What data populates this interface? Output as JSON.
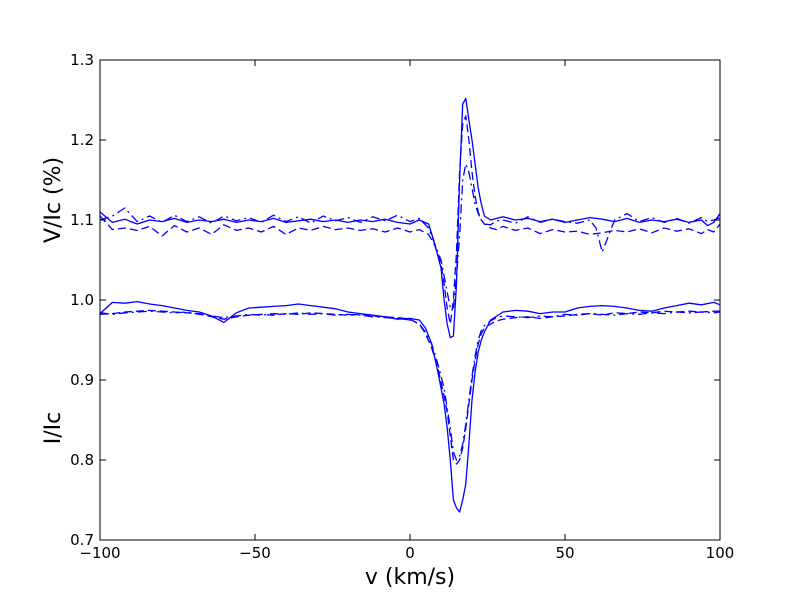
{
  "chart_data": {
    "type": "line",
    "xlabel": "v (km/s)",
    "ylabel_upper": "V/Ic (%)",
    "ylabel_lower": "I/Ic",
    "xlim": [
      -100,
      100
    ],
    "ylim": [
      0.7,
      1.3
    ],
    "xticks": [
      -100,
      -50,
      0,
      50,
      100
    ],
    "xtick_labels": [
      "−100",
      "−50",
      "0",
      "50",
      "100"
    ],
    "yticks": [
      0.7,
      0.8,
      0.9,
      1.0,
      1.1,
      1.2,
      1.3
    ],
    "ytick_labels": [
      "0.7",
      "0.8",
      "0.9",
      "1.0",
      "1.1",
      "1.2",
      "1.3"
    ],
    "grid": false,
    "line_color": "#0000ff",
    "series": [
      {
        "style": "solid",
        "group": "stokes-v",
        "x": [
          -100,
          -96,
          -92,
          -88,
          -84,
          -80,
          -76,
          -72,
          -68,
          -64,
          -60,
          -56,
          -52,
          -48,
          -44,
          -40,
          -36,
          -32,
          -28,
          -24,
          -20,
          -16,
          -12,
          -8,
          -4,
          0,
          3,
          6,
          8,
          10,
          11,
          12,
          13,
          14,
          15,
          16,
          17,
          18,
          19,
          20,
          21,
          22,
          23,
          24,
          26,
          28,
          30,
          34,
          38,
          42,
          46,
          50,
          54,
          58,
          62,
          66,
          70,
          74,
          78,
          82,
          86,
          90,
          94,
          96,
          98,
          100
        ],
        "y": [
          1.11,
          1.097,
          1.101,
          1.095,
          1.1,
          1.098,
          1.102,
          1.097,
          1.1,
          1.098,
          1.101,
          1.097,
          1.1,
          1.098,
          1.102,
          1.097,
          1.099,
          1.101,
          1.098,
          1.1,
          1.097,
          1.1,
          1.098,
          1.101,
          1.097,
          1.095,
          1.1,
          1.095,
          1.07,
          1.04,
          1.0,
          0.97,
          0.953,
          0.955,
          1.02,
          1.15,
          1.245,
          1.252,
          1.225,
          1.2,
          1.17,
          1.14,
          1.12,
          1.105,
          1.1,
          1.102,
          1.104,
          1.1,
          1.102,
          1.098,
          1.101,
          1.097,
          1.1,
          1.103,
          1.101,
          1.098,
          1.102,
          1.097,
          1.1,
          1.098,
          1.101,
          1.097,
          1.1,
          1.093,
          1.097,
          1.108
        ]
      },
      {
        "style": "dashed",
        "group": "stokes-v",
        "x": [
          -100,
          -96,
          -92,
          -88,
          -84,
          -80,
          -76,
          -72,
          -68,
          -64,
          -60,
          -56,
          -52,
          -48,
          -44,
          -40,
          -36,
          -32,
          -28,
          -24,
          -20,
          -16,
          -12,
          -8,
          -4,
          0,
          3,
          6,
          8,
          10,
          11,
          12,
          13,
          14,
          15,
          16,
          17,
          18,
          19,
          20,
          21,
          22,
          23,
          24,
          26,
          28,
          30,
          34,
          38,
          42,
          46,
          50,
          54,
          58,
          62,
          66,
          70,
          74,
          78,
          82,
          86,
          90,
          94,
          96,
          98,
          100
        ],
        "y": [
          1.105,
          1.088,
          1.09,
          1.087,
          1.092,
          1.08,
          1.093,
          1.085,
          1.09,
          1.082,
          1.094,
          1.087,
          1.09,
          1.085,
          1.092,
          1.082,
          1.09,
          1.087,
          1.092,
          1.088,
          1.09,
          1.087,
          1.089,
          1.085,
          1.09,
          1.085,
          1.088,
          1.082,
          1.068,
          1.045,
          1.02,
          0.99,
          0.97,
          1.0,
          1.06,
          1.16,
          1.22,
          1.23,
          1.2,
          1.16,
          1.13,
          1.11,
          1.1,
          1.095,
          1.09,
          1.088,
          1.092,
          1.087,
          1.09,
          1.083,
          1.088,
          1.085,
          1.086,
          1.082,
          1.084,
          1.087,
          1.085,
          1.089,
          1.084,
          1.09,
          1.086,
          1.089,
          1.083,
          1.088,
          1.085,
          1.095
        ]
      },
      {
        "style": "dashdot",
        "group": "stokes-v",
        "x": [
          -100,
          -96,
          -92,
          -88,
          -84,
          -80,
          -76,
          -72,
          -68,
          -64,
          -60,
          -56,
          -52,
          -48,
          -44,
          -40,
          -36,
          -32,
          -28,
          -24,
          -20,
          -16,
          -12,
          -8,
          -4,
          0,
          3,
          6,
          8,
          10,
          11,
          12,
          13,
          14,
          15,
          16,
          17,
          18,
          19,
          20,
          21,
          22,
          23,
          24,
          26,
          28,
          30,
          34,
          38,
          42,
          46,
          50,
          54,
          58,
          60,
          62,
          64,
          66,
          70,
          74,
          78,
          82,
          86,
          90,
          94,
          96,
          98,
          100
        ],
        "y": [
          1.1,
          1.105,
          1.115,
          1.098,
          1.105,
          1.097,
          1.106,
          1.098,
          1.104,
          1.096,
          1.105,
          1.099,
          1.103,
          1.097,
          1.106,
          1.098,
          1.104,
          1.096,
          1.105,
          1.099,
          1.103,
          1.097,
          1.104,
          1.099,
          1.106,
          1.098,
          1.102,
          1.09,
          1.07,
          1.05,
          1.03,
          1.01,
          0.99,
          0.99,
          1.03,
          1.08,
          1.15,
          1.17,
          1.16,
          1.14,
          1.12,
          1.108,
          1.1,
          1.095,
          1.094,
          1.099,
          1.1,
          1.096,
          1.104,
          1.097,
          1.101,
          1.098,
          1.096,
          1.1,
          1.09,
          1.06,
          1.08,
          1.1,
          1.108,
          1.098,
          1.103,
          1.097,
          1.102,
          1.096,
          1.103,
          1.098,
          1.1,
          1.103
        ]
      },
      {
        "style": "solid",
        "group": "stokes-i",
        "x": [
          -100,
          -96,
          -92,
          -88,
          -84,
          -80,
          -76,
          -72,
          -68,
          -64,
          -60,
          -56,
          -52,
          -48,
          -44,
          -40,
          -36,
          -32,
          -28,
          -24,
          -20,
          -16,
          -12,
          -8,
          -4,
          0,
          3,
          5,
          7,
          9,
          11,
          12,
          13,
          14,
          15,
          16,
          17,
          18,
          19,
          20,
          21,
          22,
          23,
          24,
          26,
          28,
          30,
          34,
          38,
          42,
          46,
          50,
          54,
          58,
          62,
          66,
          70,
          74,
          78,
          82,
          86,
          90,
          94,
          98,
          100
        ],
        "y": [
          0.983,
          0.997,
          0.996,
          0.998,
          0.995,
          0.993,
          0.99,
          0.987,
          0.985,
          0.98,
          0.972,
          0.984,
          0.99,
          0.991,
          0.992,
          0.993,
          0.995,
          0.993,
          0.991,
          0.989,
          0.985,
          0.983,
          0.981,
          0.979,
          0.976,
          0.977,
          0.975,
          0.965,
          0.945,
          0.91,
          0.87,
          0.84,
          0.8,
          0.75,
          0.74,
          0.735,
          0.75,
          0.77,
          0.82,
          0.875,
          0.91,
          0.935,
          0.95,
          0.96,
          0.975,
          0.98,
          0.985,
          0.987,
          0.986,
          0.983,
          0.985,
          0.985,
          0.99,
          0.992,
          0.993,
          0.992,
          0.99,
          0.987,
          0.986,
          0.99,
          0.993,
          0.996,
          0.994,
          0.997,
          0.994
        ]
      },
      {
        "style": "dashed",
        "group": "stokes-i",
        "x": [
          -100,
          -96,
          -92,
          -88,
          -84,
          -80,
          -76,
          -72,
          -68,
          -64,
          -60,
          -56,
          -52,
          -48,
          -44,
          -40,
          -36,
          -32,
          -28,
          -24,
          -20,
          -16,
          -12,
          -8,
          -4,
          0,
          3,
          5,
          7,
          9,
          11,
          12,
          13,
          14,
          15,
          16,
          17,
          18,
          19,
          20,
          21,
          22,
          23,
          24,
          26,
          28,
          30,
          34,
          38,
          42,
          46,
          50,
          54,
          58,
          62,
          66,
          70,
          74,
          78,
          82,
          86,
          90,
          94,
          98,
          100
        ],
        "y": [
          0.982,
          0.983,
          0.985,
          0.986,
          0.987,
          0.986,
          0.985,
          0.984,
          0.983,
          0.979,
          0.976,
          0.979,
          0.981,
          0.982,
          0.981,
          0.983,
          0.982,
          0.984,
          0.983,
          0.982,
          0.981,
          0.982,
          0.98,
          0.979,
          0.978,
          0.976,
          0.97,
          0.958,
          0.94,
          0.915,
          0.88,
          0.86,
          0.83,
          0.8,
          0.795,
          0.8,
          0.815,
          0.84,
          0.87,
          0.9,
          0.925,
          0.945,
          0.958,
          0.965,
          0.97,
          0.974,
          0.976,
          0.978,
          0.979,
          0.977,
          0.979,
          0.98,
          0.982,
          0.983,
          0.981,
          0.984,
          0.983,
          0.985,
          0.984,
          0.986,
          0.985,
          0.986,
          0.985,
          0.986,
          0.986
        ]
      },
      {
        "style": "dashdot",
        "group": "stokes-i",
        "x": [
          -100,
          -96,
          -92,
          -88,
          -84,
          -80,
          -76,
          -72,
          -68,
          -64,
          -60,
          -56,
          -52,
          -48,
          -44,
          -40,
          -36,
          -32,
          -28,
          -24,
          -20,
          -16,
          -12,
          -8,
          -4,
          0,
          3,
          5,
          7,
          9,
          11,
          12,
          13,
          14,
          15,
          16,
          17,
          18,
          19,
          20,
          21,
          22,
          23,
          24,
          26,
          28,
          30,
          34,
          38,
          42,
          46,
          50,
          54,
          58,
          62,
          66,
          70,
          74,
          78,
          82,
          86,
          90,
          94,
          98,
          100
        ],
        "y": [
          0.984,
          0.982,
          0.984,
          0.985,
          0.986,
          0.985,
          0.984,
          0.985,
          0.982,
          0.98,
          0.978,
          0.98,
          0.982,
          0.981,
          0.983,
          0.982,
          0.984,
          0.982,
          0.983,
          0.981,
          0.982,
          0.981,
          0.979,
          0.978,
          0.977,
          0.975,
          0.97,
          0.96,
          0.945,
          0.92,
          0.89,
          0.865,
          0.84,
          0.81,
          0.8,
          0.805,
          0.82,
          0.845,
          0.875,
          0.905,
          0.93,
          0.95,
          0.962,
          0.968,
          0.974,
          0.978,
          0.98,
          0.979,
          0.978,
          0.98,
          0.979,
          0.982,
          0.981,
          0.983,
          0.982,
          0.981,
          0.983,
          0.982,
          0.984,
          0.983,
          0.985,
          0.984,
          0.985,
          0.984,
          0.985
        ]
      }
    ]
  }
}
